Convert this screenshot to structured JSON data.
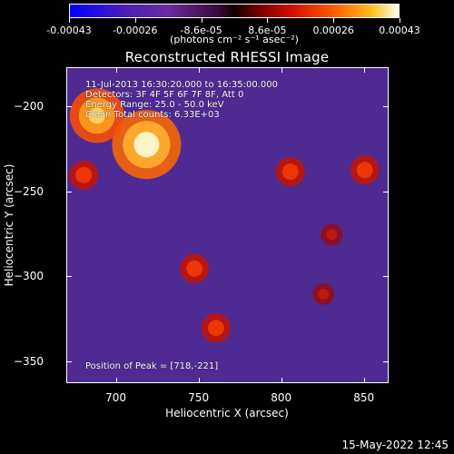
{
  "colorbar": {
    "labels": [
      "-0.00043",
      "-0.00026",
      "-8.6e-05",
      "8.6e-05",
      "0.00026",
      "0.00043"
    ],
    "unit": "(photons cm⁻² s⁻¹ asec⁻²)"
  },
  "chart_data": {
    "type": "heatmap",
    "title": "Reconstructed RHESSI Image",
    "xlabel": "Heliocentric X (arcsec)",
    "ylabel": "Heliocentric Y (arcsec)",
    "x_ticks": [
      "700",
      "750",
      "800",
      "850"
    ],
    "y_ticks": [
      "-200",
      "-250",
      "-300",
      "-350"
    ],
    "xlim": [
      670,
      865
    ],
    "ylim": [
      -363,
      -177
    ],
    "peak_position": [
      718,
      -221
    ],
    "bright_regions": [
      {
        "x": 718,
        "y": -222,
        "level": "peak"
      },
      {
        "x": 688,
        "y": -205,
        "level": "high"
      },
      {
        "x": 680,
        "y": -240,
        "level": "medium"
      },
      {
        "x": 747,
        "y": -295,
        "level": "medium"
      },
      {
        "x": 760,
        "y": -330,
        "level": "medium"
      },
      {
        "x": 805,
        "y": -238,
        "level": "medium"
      },
      {
        "x": 850,
        "y": -237,
        "level": "medium"
      },
      {
        "x": 825,
        "y": -310,
        "level": "low"
      },
      {
        "x": 830,
        "y": -275,
        "level": "low"
      }
    ],
    "annotations": {
      "line1": "11-Jul-2013 16:30:20.000 to 16:35:00.000",
      "line2": "Detectors: 3F 4F 5F 6F 7F 8F, Att 0",
      "line3": "Energy Range: 25.0 - 50.0 keV",
      "line4": "Clean     Total counts: 6.33E+03",
      "peak": "Position of Peak = [718,-221]"
    }
  },
  "footer": {
    "date": "15-May-2022 12:45"
  }
}
